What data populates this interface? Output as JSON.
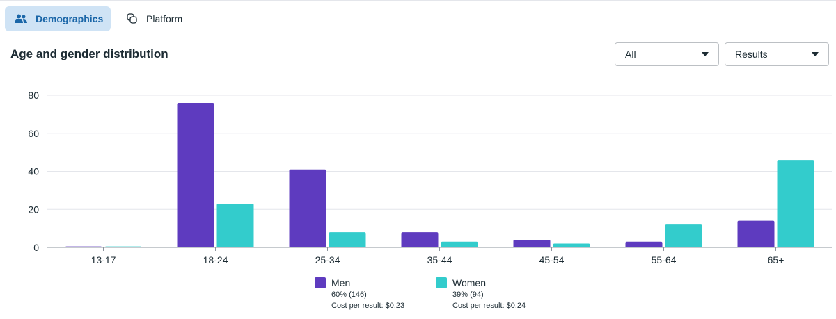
{
  "tabs": [
    {
      "label": "Demographics",
      "icon": "people-icon"
    },
    {
      "label": "Platform",
      "icon": "copy-icon"
    }
  ],
  "title": "Age and gender distribution",
  "filters": [
    {
      "value": "All"
    },
    {
      "value": "Results"
    }
  ],
  "legend": [
    {
      "name": "Men",
      "share": "60% (146)",
      "cost": "Cost per result: $0.23"
    },
    {
      "name": "Women",
      "share": "39% (94)",
      "cost": "Cost per result: $0.24"
    }
  ],
  "chart_data": {
    "type": "bar",
    "title": "Age and gender distribution",
    "xlabel": "",
    "ylabel": "",
    "ylim": [
      0,
      80
    ],
    "yticks": [
      0,
      20,
      40,
      60,
      80
    ],
    "grid": true,
    "legend_position": "bottom",
    "categories": [
      "13-17",
      "18-24",
      "25-34",
      "35-44",
      "45-54",
      "55-64",
      "65+"
    ],
    "series": [
      {
        "name": "Men",
        "color": "#5e3bbf",
        "values": [
          0.5,
          76,
          41,
          8,
          4,
          3,
          14
        ]
      },
      {
        "name": "Women",
        "color": "#33cccc",
        "values": [
          0.5,
          23,
          8,
          3,
          2,
          12,
          46
        ]
      }
    ]
  }
}
